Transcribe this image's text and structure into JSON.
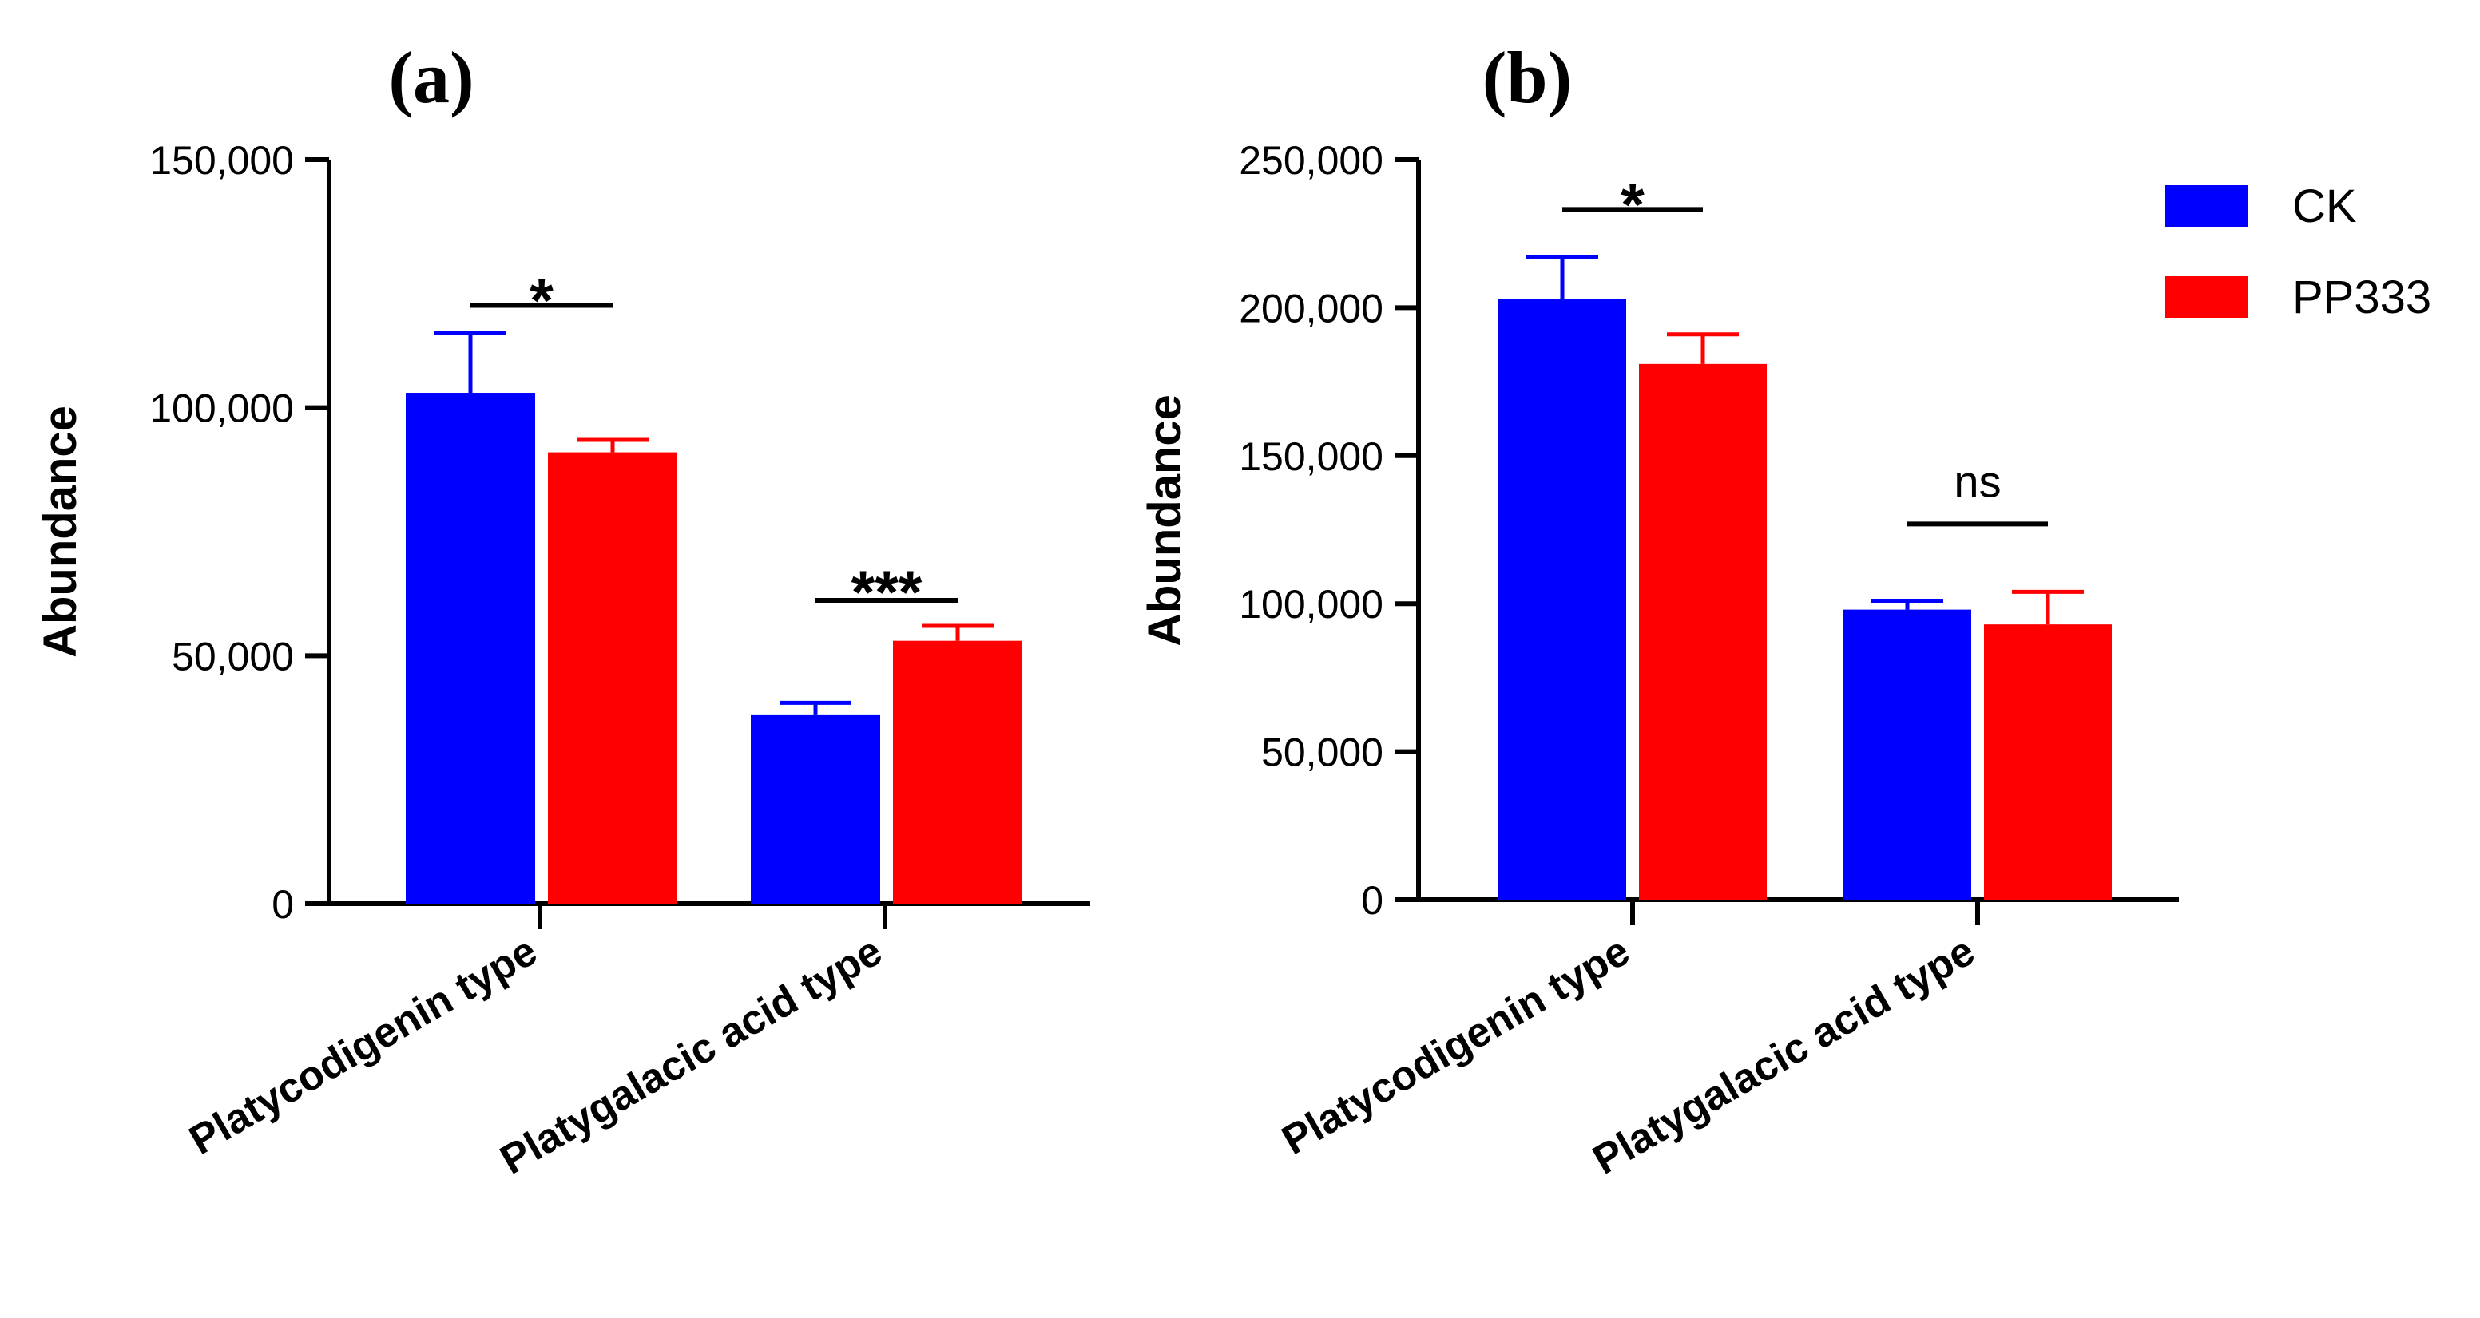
{
  "legend": [
    {
      "name": "CK",
      "color": "#0000ff"
    },
    {
      "name": "PP333",
      "color": "#ff0000"
    }
  ],
  "chart_data": [
    {
      "panel": "(a)",
      "type": "bar",
      "ylabel": "Abundance",
      "ylim": [
        0,
        150000
      ],
      "yticks": [
        0,
        50000,
        100000,
        150000
      ],
      "ytick_labels": [
        "0",
        "50,000",
        "100,000",
        "150,000"
      ],
      "categories": [
        "Platycodigenin type",
        "Platygalacic acid type"
      ],
      "series": [
        {
          "name": "CK",
          "color": "#0000ff",
          "values": [
            103000,
            38000
          ],
          "errors": [
            12000,
            2500
          ]
        },
        {
          "name": "PP333",
          "color": "#ff0000",
          "values": [
            91000,
            53000
          ],
          "errors": [
            2500,
            3000
          ]
        }
      ],
      "significance": [
        "*",
        "***"
      ]
    },
    {
      "panel": "(b)",
      "type": "bar",
      "ylabel": "Abundance",
      "ylim": [
        0,
        250000
      ],
      "yticks": [
        0,
        50000,
        100000,
        150000,
        200000,
        250000
      ],
      "ytick_labels": [
        "0",
        "50,000",
        "100,000",
        "150,000",
        "200,000",
        "250,000"
      ],
      "categories": [
        "Platycodigenin type",
        "Platygalacic acid type"
      ],
      "series": [
        {
          "name": "CK",
          "color": "#0000ff",
          "values": [
            203000,
            98000
          ],
          "errors": [
            14000,
            3000
          ]
        },
        {
          "name": "PP333",
          "color": "#ff0000",
          "values": [
            181000,
            93000
          ],
          "errors": [
            10000,
            11000
          ]
        }
      ],
      "significance": [
        "*",
        "ns"
      ]
    }
  ]
}
